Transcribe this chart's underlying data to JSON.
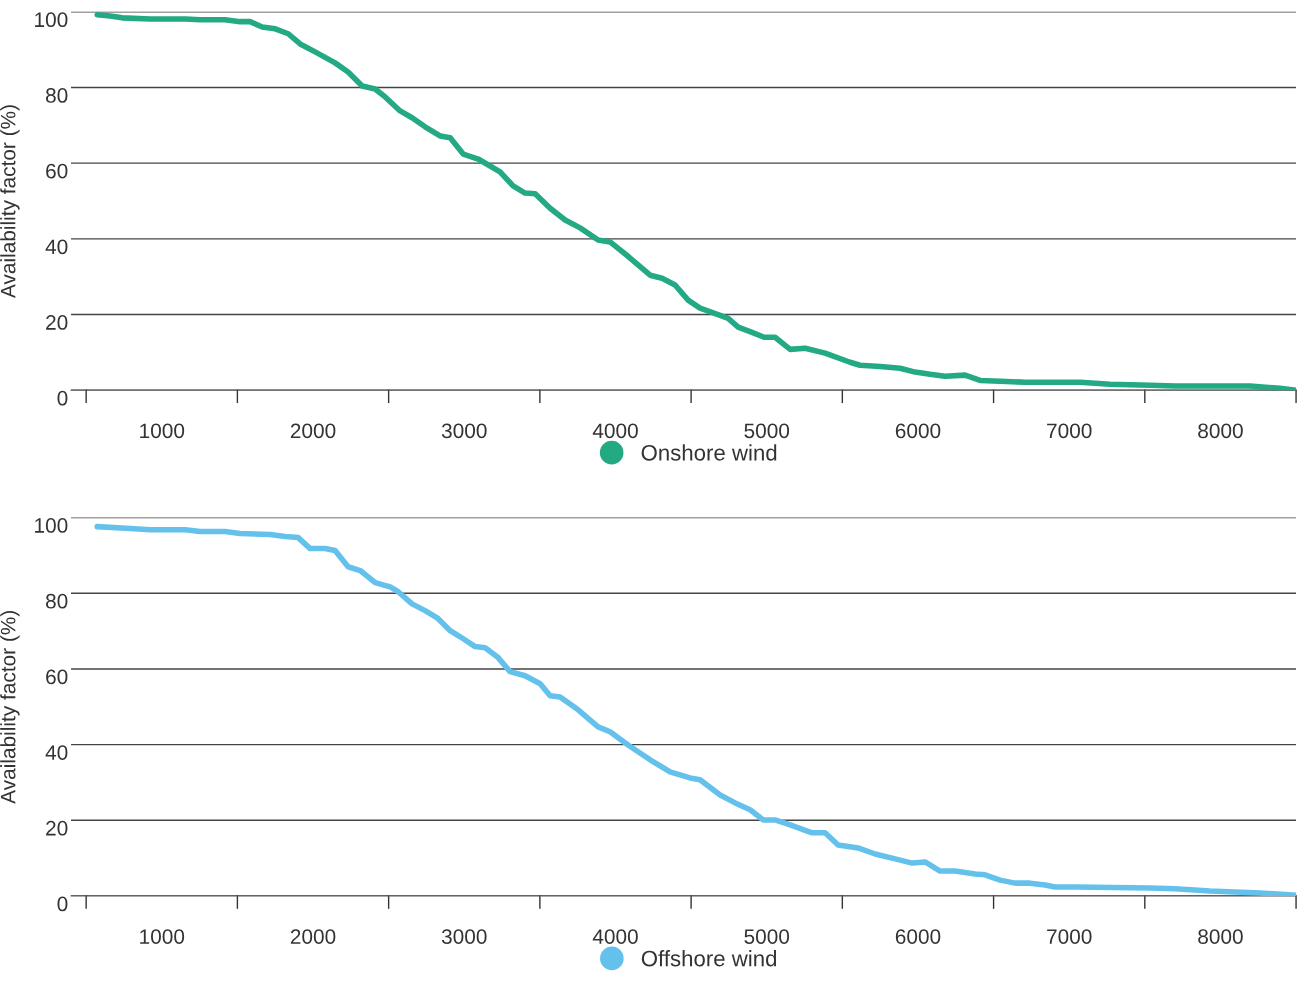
{
  "chart_data": [
    {
      "type": "line",
      "ylabel": "Availability factor (%)",
      "xlim": [
        400,
        8500
      ],
      "ylim": [
        0,
        100
      ],
      "yticks": [
        0,
        20,
        40,
        60,
        80,
        100
      ],
      "xticks": [
        {
          "value": 500,
          "label": null
        },
        {
          "value": 1000,
          "label": "1000"
        },
        {
          "value": 1500,
          "label": null
        },
        {
          "value": 2000,
          "label": "2000"
        },
        {
          "value": 2500,
          "label": null
        },
        {
          "value": 3000,
          "label": "3000"
        },
        {
          "value": 3500,
          "label": null
        },
        {
          "value": 4000,
          "label": "4000"
        },
        {
          "value": 4500,
          "label": null
        },
        {
          "value": 5000,
          "label": "5000"
        },
        {
          "value": 5500,
          "label": null
        },
        {
          "value": 6000,
          "label": "6000"
        },
        {
          "value": 6500,
          "label": null
        },
        {
          "value": 7000,
          "label": "7000"
        },
        {
          "value": 7500,
          "label": null
        },
        {
          "value": 8000,
          "label": "8000"
        },
        {
          "value": 8500,
          "label": null
        }
      ],
      "grid": "y",
      "legend": "bottom",
      "marker": "none",
      "line_style": "solid",
      "series": [
        {
          "name": "Onshore wind",
          "color": "#23a983",
          "x": [
            573,
            659,
            738,
            923,
            1155,
            1254,
            1419,
            1518,
            1584,
            1664,
            1750,
            1836,
            1915,
            2014,
            2146,
            2232,
            2325,
            2411,
            2477,
            2576,
            2655,
            2741,
            2840,
            2907,
            2993,
            3092,
            3237,
            3323,
            3402,
            3469,
            3568,
            3667,
            3766,
            3885,
            3964,
            4083,
            4229,
            4308,
            4394,
            4480,
            4559,
            4692,
            4745,
            4811,
            4903,
            4983,
            5055,
            5155,
            5254,
            5386,
            5551,
            5617,
            5750,
            5882,
            5981,
            6080,
            6179,
            6312,
            6411,
            6543,
            6708,
            7072,
            7270,
            7535,
            7700,
            8196,
            8394,
            8500
          ],
          "values": [
            99.2,
            98.9,
            98.4,
            98.1,
            98.1,
            97.9,
            97.9,
            97.4,
            97.4,
            96.0,
            95.5,
            94.2,
            91.5,
            89.4,
            86.5,
            84.1,
            80.4,
            79.6,
            77.5,
            73.8,
            72.0,
            69.6,
            67.2,
            66.7,
            62.4,
            61.1,
            57.7,
            54.0,
            52.1,
            51.9,
            48.1,
            45.0,
            42.9,
            39.7,
            39.2,
            35.4,
            30.4,
            29.6,
            27.8,
            23.8,
            21.7,
            19.8,
            19.0,
            16.7,
            15.3,
            14.0,
            14.0,
            10.8,
            11.1,
            9.8,
            7.4,
            6.6,
            6.3,
            5.8,
            4.8,
            4.2,
            3.7,
            4.0,
            2.6,
            2.4,
            2.1,
            2.1,
            1.6,
            1.3,
            1.1,
            1.1,
            0.5,
            0
          ]
        }
      ]
    },
    {
      "type": "line",
      "ylabel": "Availability factor (%)",
      "xlim": [
        400,
        8500
      ],
      "ylim": [
        0,
        100
      ],
      "yticks": [
        0,
        20,
        40,
        60,
        80,
        100
      ],
      "xticks": [
        {
          "value": 500,
          "label": null
        },
        {
          "value": 1000,
          "label": "1000"
        },
        {
          "value": 1500,
          "label": null
        },
        {
          "value": 2000,
          "label": "2000"
        },
        {
          "value": 2500,
          "label": null
        },
        {
          "value": 3000,
          "label": "3000"
        },
        {
          "value": 3500,
          "label": null
        },
        {
          "value": 4000,
          "label": "4000"
        },
        {
          "value": 4500,
          "label": null
        },
        {
          "value": 5000,
          "label": "5000"
        },
        {
          "value": 5500,
          "label": null
        },
        {
          "value": 6000,
          "label": "6000"
        },
        {
          "value": 6500,
          "label": null
        },
        {
          "value": 7000,
          "label": "7000"
        },
        {
          "value": 7500,
          "label": null
        },
        {
          "value": 8000,
          "label": "8000"
        },
        {
          "value": 8500,
          "label": null
        }
      ],
      "grid": "y",
      "legend": "bottom",
      "marker": "none",
      "line_style": "solid",
      "series": [
        {
          "name": "Offshore wind",
          "color": "#64c1ec",
          "x": [
            573,
            791,
            923,
            1155,
            1254,
            1419,
            1518,
            1717,
            1816,
            1902,
            1981,
            2080,
            2146,
            2232,
            2312,
            2411,
            2510,
            2563,
            2655,
            2741,
            2821,
            2907,
            2973,
            3072,
            3138,
            3224,
            3303,
            3402,
            3502,
            3568,
            3634,
            3753,
            3885,
            3964,
            4083,
            4229,
            4361,
            4493,
            4559,
            4692,
            4791,
            4890,
            4976,
            5055,
            5155,
            5300,
            5386,
            5472,
            5604,
            5717,
            5849,
            5961,
            6047,
            6146,
            6245,
            6378,
            6444,
            6543,
            6642,
            6741,
            6840,
            6907,
            7039,
            7535,
            7700,
            7931,
            8262,
            8500
          ],
          "values": [
            97.6,
            97.1,
            96.8,
            96.8,
            96.3,
            96.3,
            95.8,
            95.5,
            95.0,
            94.7,
            91.8,
            91.8,
            91.3,
            87.0,
            86.0,
            82.8,
            81.7,
            80.4,
            77.2,
            75.4,
            73.5,
            70.1,
            68.5,
            65.9,
            65.6,
            63.0,
            59.3,
            58.2,
            56.1,
            52.9,
            52.6,
            49.2,
            44.7,
            43.4,
            39.9,
            36.0,
            32.8,
            31.2,
            30.7,
            26.7,
            24.6,
            22.8,
            20.1,
            20.1,
            18.8,
            16.7,
            16.7,
            13.5,
            12.7,
            11.1,
            9.8,
            8.7,
            9.0,
            6.6,
            6.6,
            5.8,
            5.6,
            4.2,
            3.4,
            3.4,
            2.9,
            2.4,
            2.4,
            2.1,
            1.9,
            1.3,
            0.8,
            0.2
          ]
        }
      ]
    }
  ]
}
